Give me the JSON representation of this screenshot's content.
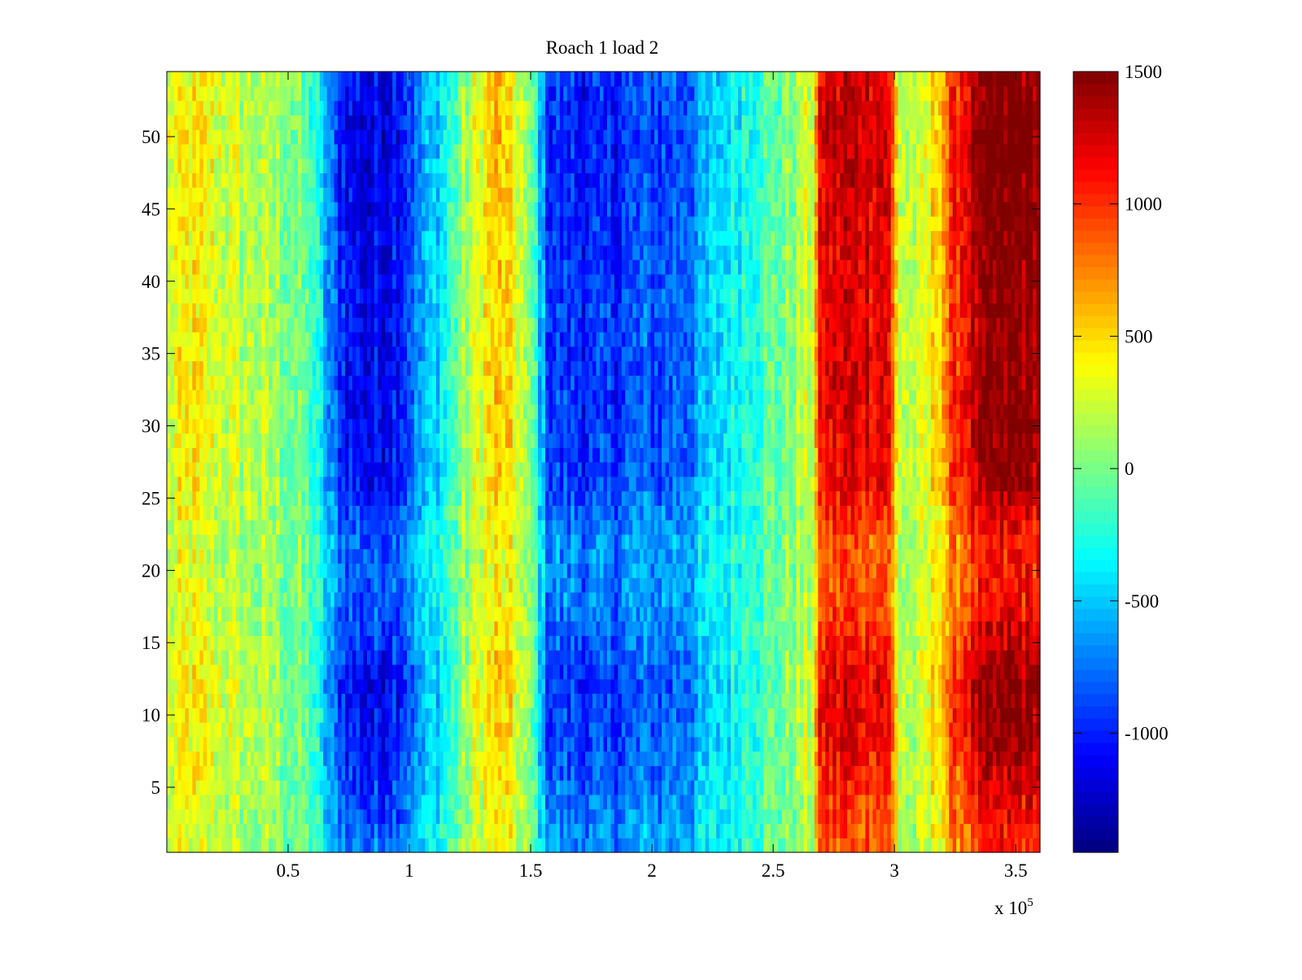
{
  "chart_data": {
    "type": "heatmap",
    "title": "Roach 1 load 2",
    "xlabel": "",
    "ylabel": "",
    "x_exponent_label": "x 10",
    "x_exponent_power": "5",
    "x_scale": 100000,
    "xlim": [
      0,
      3.6
    ],
    "ylim": [
      0.5,
      54.5
    ],
    "x_ticks": [
      0.5,
      1,
      1.5,
      2,
      2.5,
      3,
      3.5
    ],
    "x_tick_labels": [
      "0.5",
      "1",
      "1.5",
      "2",
      "2.5",
      "3",
      "3.5"
    ],
    "y_ticks": [
      5,
      10,
      15,
      20,
      25,
      30,
      35,
      40,
      45,
      50
    ],
    "y_tick_labels": [
      "5",
      "10",
      "15",
      "20",
      "25",
      "30",
      "35",
      "40",
      "45",
      "50"
    ],
    "rows": 54,
    "colormap": "jet",
    "clim": [
      -1450,
      1500
    ],
    "colorbar": {
      "ticks": [
        -1000,
        -500,
        0,
        500,
        1000,
        1500
      ],
      "tick_labels": [
        "-1000",
        "-500",
        "0",
        "500",
        "1000",
        "1500"
      ]
    },
    "column_profile": {
      "x": [
        0.0,
        0.05,
        0.1,
        0.2,
        0.3,
        0.4,
        0.5,
        0.6,
        0.68,
        0.75,
        0.85,
        0.95,
        1.05,
        1.15,
        1.22,
        1.3,
        1.38,
        1.45,
        1.52,
        1.57,
        1.65,
        1.75,
        1.85,
        1.95,
        2.05,
        2.15,
        2.25,
        2.4,
        2.55,
        2.66,
        2.7,
        2.8,
        2.9,
        2.97,
        3.02,
        3.1,
        3.16,
        3.22,
        3.28,
        3.34,
        3.42,
        3.5,
        3.6
      ],
      "mean": [
        250,
        350,
        400,
        300,
        200,
        150,
        50,
        -150,
        -800,
        -1050,
        -1150,
        -1000,
        -650,
        -300,
        50,
        400,
        550,
        300,
        -200,
        -900,
        -950,
        -1000,
        -950,
        -850,
        -850,
        -750,
        -500,
        -200,
        0,
        250,
        1200,
        1250,
        1250,
        1250,
        250,
        150,
        450,
        800,
        1150,
        1350,
        1450,
        1500,
        1450
      ],
      "row_scale_y": [
        1,
        8,
        12,
        18,
        22,
        26,
        32,
        38,
        45,
        50,
        54
      ],
      "row_scale": [
        0.7,
        0.95,
        1.0,
        0.75,
        0.72,
        0.95,
        1.0,
        0.97,
        1.02,
        1.05,
        1.0
      ],
      "noise_amplitude": 230
    }
  }
}
